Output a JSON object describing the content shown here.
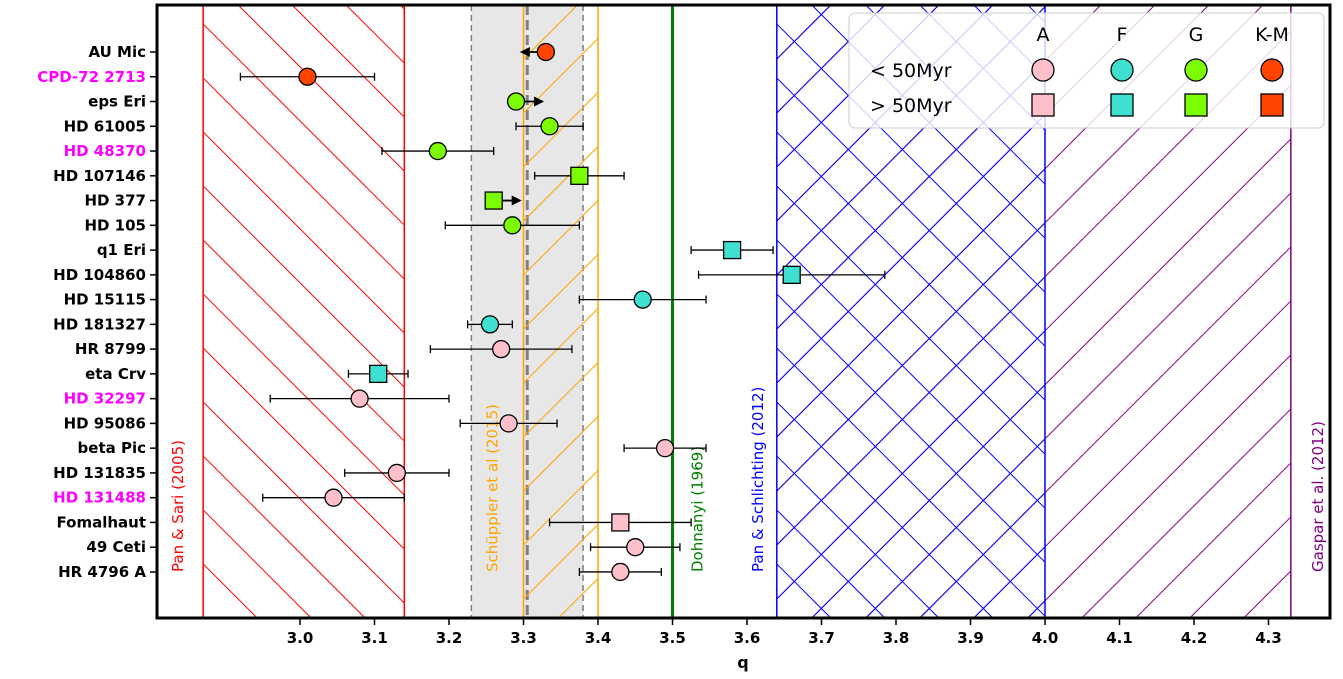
{
  "chart_data": {
    "type": "scatter",
    "xlabel": "q",
    "xlim": [
      2.8,
      4.37
    ],
    "xticks": [
      "3.0",
      "3.1",
      "3.2",
      "3.3",
      "3.4",
      "3.5",
      "3.6",
      "3.7",
      "3.8",
      "3.9",
      "4.0",
      "4.1",
      "4.2",
      "4.3"
    ],
    "xtick_values": [
      3.0,
      3.1,
      3.2,
      3.3,
      3.4,
      3.5,
      3.6,
      3.7,
      3.8,
      3.9,
      4.0,
      4.1,
      4.2,
      4.3
    ],
    "regions": [
      {
        "label": "Pan & Sari (2005)",
        "x0": 2.87,
        "x1": 3.14,
        "color": "#ff0000",
        "hatch": "backslash"
      },
      {
        "label": "Schüppler et al (2015)",
        "x0": 3.3,
        "x1": 3.4,
        "color": "#ffa500",
        "hatch": "slash"
      },
      {
        "label": "Dohnanyi (1969)",
        "x": 3.5,
        "color": "#008000",
        "hatch": "line"
      },
      {
        "label": "Pan & Schlichting (2012)",
        "x0": 3.64,
        "x1": 4.0,
        "color": "#0000ff",
        "hatch": "cross"
      },
      {
        "label": "Gaspar et al. (2012)",
        "x0": 3.64,
        "x1": 4.33,
        "color": "#800080",
        "hatch": "slash"
      }
    ],
    "shaded_band": {
      "x0": 3.23,
      "x1": 3.38,
      "center": 3.305,
      "color": "#d3d3d3"
    },
    "stars": [
      {
        "name": "AU Mic",
        "label_color": "#000000",
        "q": 3.33,
        "err_lo": null,
        "err_hi": null,
        "spectral": "K-M",
        "age": "<50",
        "limit": "upper"
      },
      {
        "name": "CPD-72 2713",
        "label_color": "#ff00ff",
        "q": 3.01,
        "err_lo": 0.09,
        "err_hi": 0.09,
        "spectral": "K-M",
        "age": "<50",
        "limit": null
      },
      {
        "name": "eps Eri",
        "label_color": "#000000",
        "q": 3.29,
        "err_lo": null,
        "err_hi": null,
        "spectral": "G",
        "age": "<50",
        "limit": "lower"
      },
      {
        "name": "HD 61005",
        "label_color": "#000000",
        "q": 3.335,
        "err_lo": 0.045,
        "err_hi": 0.045,
        "spectral": "G",
        "age": "<50",
        "limit": null
      },
      {
        "name": "HD 48370",
        "label_color": "#ff00ff",
        "q": 3.185,
        "err_lo": 0.075,
        "err_hi": 0.075,
        "spectral": "G",
        "age": "<50",
        "limit": null
      },
      {
        "name": "HD 107146",
        "label_color": "#000000",
        "q": 3.375,
        "err_lo": 0.06,
        "err_hi": 0.06,
        "spectral": "G",
        "age": ">50",
        "limit": null
      },
      {
        "name": "HD 377",
        "label_color": "#000000",
        "q": 3.26,
        "err_lo": null,
        "err_hi": null,
        "spectral": "G",
        "age": ">50",
        "limit": "lower"
      },
      {
        "name": "HD 105",
        "label_color": "#000000",
        "q": 3.285,
        "err_lo": 0.09,
        "err_hi": 0.09,
        "spectral": "G",
        "age": "<50",
        "limit": null
      },
      {
        "name": "q1 Eri",
        "label_color": "#000000",
        "q": 3.58,
        "err_lo": 0.055,
        "err_hi": 0.055,
        "spectral": "F",
        "age": ">50",
        "limit": null
      },
      {
        "name": "HD 104860",
        "label_color": "#000000",
        "q": 3.66,
        "err_lo": 0.125,
        "err_hi": 0.125,
        "spectral": "F",
        "age": ">50",
        "limit": null
      },
      {
        "name": "HD 15115",
        "label_color": "#000000",
        "q": 3.46,
        "err_lo": 0.085,
        "err_hi": 0.085,
        "spectral": "F",
        "age": "<50",
        "limit": null
      },
      {
        "name": "HD 181327",
        "label_color": "#000000",
        "q": 3.255,
        "err_lo": 0.03,
        "err_hi": 0.03,
        "spectral": "F",
        "age": "<50",
        "limit": null
      },
      {
        "name": "HR 8799",
        "label_color": "#000000",
        "q": 3.27,
        "err_lo": 0.095,
        "err_hi": 0.095,
        "spectral": "A",
        "age": "<50",
        "limit": null
      },
      {
        "name": "eta Crv",
        "label_color": "#000000",
        "q": 3.105,
        "err_lo": 0.04,
        "err_hi": 0.04,
        "spectral": "F",
        "age": ">50",
        "limit": null
      },
      {
        "name": "HD 32297",
        "label_color": "#ff00ff",
        "q": 3.08,
        "err_lo": 0.12,
        "err_hi": 0.12,
        "spectral": "A",
        "age": "<50",
        "limit": null
      },
      {
        "name": "HD 95086",
        "label_color": "#000000",
        "q": 3.28,
        "err_lo": 0.065,
        "err_hi": 0.065,
        "spectral": "A",
        "age": "<50",
        "limit": null
      },
      {
        "name": "beta Pic",
        "label_color": "#000000",
        "q": 3.49,
        "err_lo": 0.055,
        "err_hi": 0.055,
        "spectral": "A",
        "age": "<50",
        "limit": null
      },
      {
        "name": "HD 131835",
        "label_color": "#000000",
        "q": 3.13,
        "err_lo": 0.07,
        "err_hi": 0.07,
        "spectral": "A",
        "age": "<50",
        "limit": null
      },
      {
        "name": "HD 131488",
        "label_color": "#ff00ff",
        "q": 3.045,
        "err_lo": 0.095,
        "err_hi": 0.095,
        "spectral": "A",
        "age": "<50",
        "limit": null
      },
      {
        "name": "Fomalhaut",
        "label_color": "#000000",
        "q": 3.43,
        "err_lo": 0.095,
        "err_hi": 0.095,
        "spectral": "A",
        "age": ">50",
        "limit": null
      },
      {
        "name": "49 Ceti",
        "label_color": "#000000",
        "q": 3.45,
        "err_lo": 0.06,
        "err_hi": 0.06,
        "spectral": "A",
        "age": "<50",
        "limit": null
      },
      {
        "name": "HR 4796 A",
        "label_color": "#000000",
        "q": 3.43,
        "err_lo": 0.055,
        "err_hi": 0.055,
        "spectral": "A",
        "age": "<50",
        "limit": null
      }
    ],
    "legend": {
      "position": "top-right",
      "columns": [
        "A",
        "F",
        "G",
        "K-M"
      ],
      "rows": [
        {
          "label": "< 50Myr",
          "marker": "circle"
        },
        {
          "label": "> 50Myr",
          "marker": "square"
        }
      ]
    },
    "spectral_colors": {
      "A": "#ffc0cb",
      "F": "#40e0d0",
      "G": "#7cfc00",
      "K-M": "#ff4500"
    }
  }
}
